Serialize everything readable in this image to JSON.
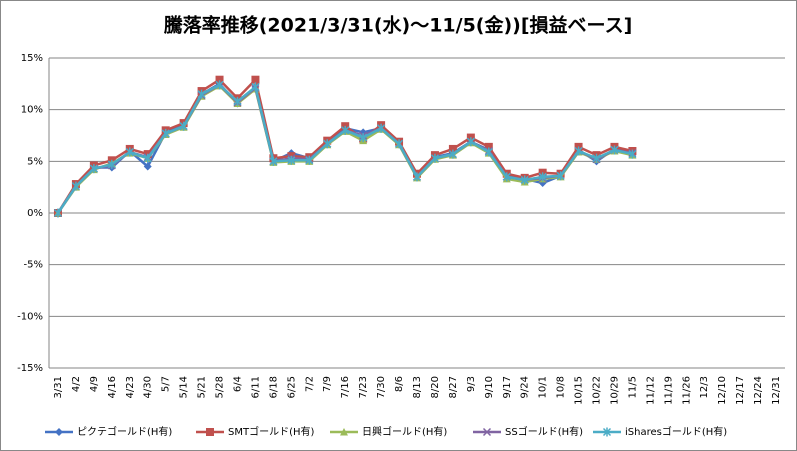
{
  "chart_data": {
    "type": "line",
    "title": "騰落率推移(2021/3/31(水)～11/5(金))[損益ベース]",
    "categories": [
      "3/31",
      "4/2",
      "4/9",
      "4/16",
      "4/23",
      "4/30",
      "5/7",
      "5/14",
      "5/21",
      "5/28",
      "6/4",
      "6/11",
      "6/18",
      "6/25",
      "7/2",
      "7/9",
      "7/16",
      "7/23",
      "7/30",
      "8/6",
      "8/13",
      "8/20",
      "8/27",
      "9/3",
      "9/10",
      "9/17",
      "9/24",
      "10/1",
      "10/8",
      "10/15",
      "10/22",
      "10/29",
      "11/5",
      "11/12",
      "11/19",
      "11/26",
      "12/3",
      "12/10",
      "12/17",
      "12/24",
      "12/31"
    ],
    "series": [
      {
        "name": "ピクテゴールド(H有)",
        "color": "#4472c4",
        "marker": "diamond",
        "values": [
          0,
          2.7,
          4.4,
          4.4,
          6.0,
          4.5,
          7.8,
          8.5,
          11.5,
          12.5,
          10.6,
          12.2,
          5.0,
          5.8,
          5.3,
          6.8,
          8.2,
          7.8,
          8.2,
          6.8,
          3.6,
          5.4,
          5.8,
          6.9,
          6.1,
          3.6,
          3.3,
          2.9,
          3.6,
          6.1,
          5.0,
          6.2,
          5.8,
          null,
          null,
          null,
          null,
          null,
          null,
          null,
          null
        ]
      },
      {
        "name": "SMTゴールド(H有)",
        "color": "#c0504d",
        "marker": "square",
        "values": [
          0,
          2.8,
          4.6,
          5.1,
          6.2,
          5.7,
          8.0,
          8.7,
          11.8,
          12.9,
          11.1,
          12.9,
          5.3,
          5.5,
          5.4,
          7.0,
          8.4,
          7.2,
          8.5,
          6.9,
          3.8,
          5.6,
          6.2,
          7.3,
          6.4,
          3.8,
          3.4,
          3.9,
          3.8,
          6.4,
          5.6,
          6.4,
          6.0,
          null,
          null,
          null,
          null,
          null,
          null,
          null,
          null
        ]
      },
      {
        "name": "日興ゴールド(H有)",
        "color": "#9bbb59",
        "marker": "triangle",
        "values": [
          0,
          2.5,
          4.2,
          4.8,
          5.8,
          5.3,
          7.6,
          8.3,
          11.3,
          12.3,
          10.6,
          12.0,
          4.9,
          5.0,
          5.0,
          6.6,
          7.9,
          7.0,
          8.1,
          6.6,
          3.4,
          5.2,
          5.6,
          6.8,
          5.8,
          3.3,
          3.0,
          3.3,
          3.5,
          5.9,
          5.2,
          6.0,
          5.6,
          null,
          null,
          null,
          null,
          null,
          null,
          null,
          null
        ]
      },
      {
        "name": "SSゴールド(H有)",
        "color": "#8064a2",
        "marker": "x",
        "values": [
          0,
          2.6,
          4.3,
          4.6,
          5.9,
          5.4,
          7.7,
          8.4,
          11.4,
          12.4,
          10.7,
          12.1,
          5.0,
          5.3,
          5.2,
          6.7,
          8.0,
          7.5,
          8.2,
          6.7,
          3.5,
          5.3,
          5.7,
          6.9,
          6.0,
          3.5,
          3.2,
          3.4,
          3.6,
          6.0,
          5.2,
          6.1,
          5.8,
          null,
          null,
          null,
          null,
          null,
          null,
          null,
          null
        ]
      },
      {
        "name": "iSharesゴールド(H有)",
        "color": "#4bacc6",
        "marker": "star",
        "values": [
          0,
          2.6,
          4.3,
          4.7,
          5.9,
          5.3,
          7.7,
          8.4,
          11.5,
          12.4,
          10.8,
          12.2,
          5.0,
          5.1,
          5.1,
          6.7,
          8.0,
          7.3,
          8.2,
          6.7,
          3.5,
          5.3,
          5.7,
          6.9,
          5.9,
          3.5,
          3.2,
          3.5,
          3.6,
          6.0,
          5.3,
          6.1,
          5.7,
          null,
          null,
          null,
          null,
          null,
          null,
          null,
          null
        ]
      }
    ],
    "ylim": [
      -15,
      15
    ],
    "yticks": [
      {
        "value": -15,
        "label": "-15%"
      },
      {
        "value": -10,
        "label": "-10%"
      },
      {
        "value": -5,
        "label": "-5%"
      },
      {
        "value": 0,
        "label": "0%"
      },
      {
        "value": 5,
        "label": "5%"
      },
      {
        "value": 10,
        "label": "10%"
      },
      {
        "value": 15,
        "label": "15%"
      }
    ],
    "grid": true,
    "legend": "bottom"
  }
}
